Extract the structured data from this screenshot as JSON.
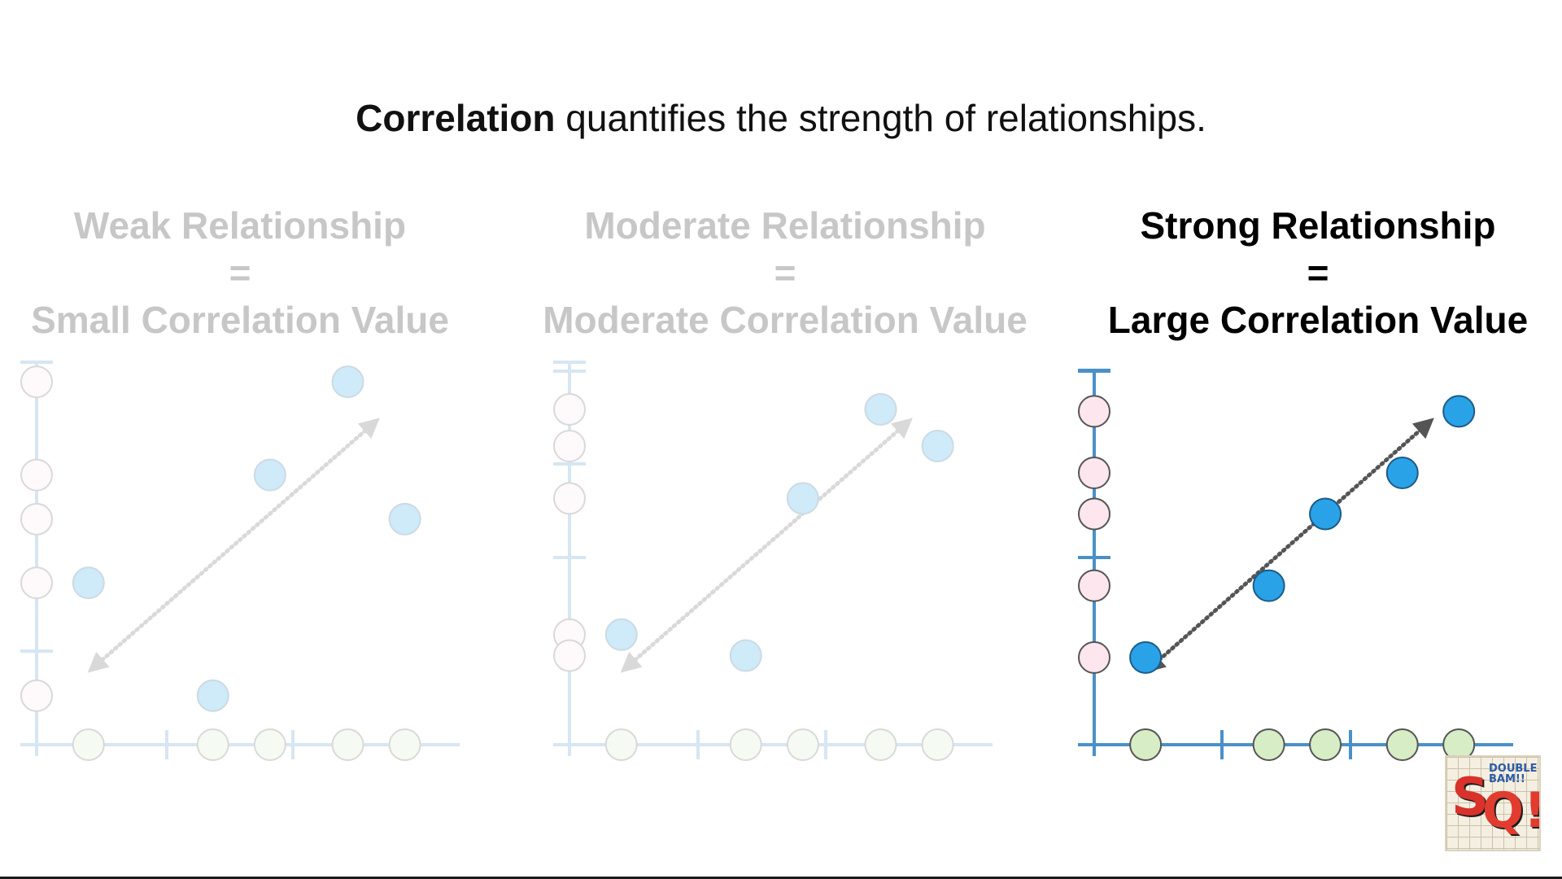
{
  "headline": {
    "bold": "Correlation",
    "rest": " quantifies the strength of relationships."
  },
  "panels": [
    {
      "key": "weak",
      "line1": "Weak Relationship",
      "line2": "=",
      "line3": "Small Correlation Value",
      "active": false
    },
    {
      "key": "moderate",
      "line1": "Moderate Relationship",
      "line2": "=",
      "line3": "Moderate Correlation Value",
      "active": false
    },
    {
      "key": "strong",
      "line1": "Strong Relationship",
      "line2": "=",
      "line3": "Large Correlation Value",
      "active": true
    }
  ],
  "chart_data": [
    {
      "type": "scatter",
      "title": "Weak Relationship = Small Correlation Value",
      "x": [
        1,
        3.4,
        4.5,
        6,
        7.1
      ],
      "y": [
        3.3,
        1,
        5.5,
        7.4,
        4.6
      ],
      "xlim": [
        0,
        8
      ],
      "ylim": [
        0,
        7.8
      ],
      "trend_arrow": true,
      "opacity": "faded"
    },
    {
      "type": "scatter",
      "title": "Moderate Relationship = Moderate Correlation Value",
      "x": [
        1,
        3.4,
        4.5,
        6,
        7.1
      ],
      "y": [
        2.1,
        1.7,
        4.7,
        6.4,
        5.7
      ],
      "xlim": [
        0,
        8
      ],
      "ylim": [
        0,
        7.3
      ],
      "trend_arrow": true,
      "opacity": "faded"
    },
    {
      "type": "scatter",
      "title": "Strong Relationship = Large Correlation Value",
      "x": [
        1,
        3.4,
        4.5,
        6,
        7.1
      ],
      "y": [
        1.7,
        3.1,
        4.5,
        5.3,
        6.5
      ],
      "xlim": [
        0,
        8
      ],
      "ylim": [
        0,
        7.3
      ],
      "trend_arrow": true,
      "opacity": "full"
    }
  ],
  "colors": {
    "axis": "#4a90c8",
    "point_fill": "#29a2e8",
    "point_stroke": "#1d5b86",
    "y_projection_fill": "#fde6ee",
    "x_projection_fill": "#d6edc5",
    "arrow": "#555555",
    "faded_opacity": 0.22
  },
  "logo": {
    "big1": "S",
    "big2": "Q!",
    "small": "DOUBLE BAM!!"
  }
}
